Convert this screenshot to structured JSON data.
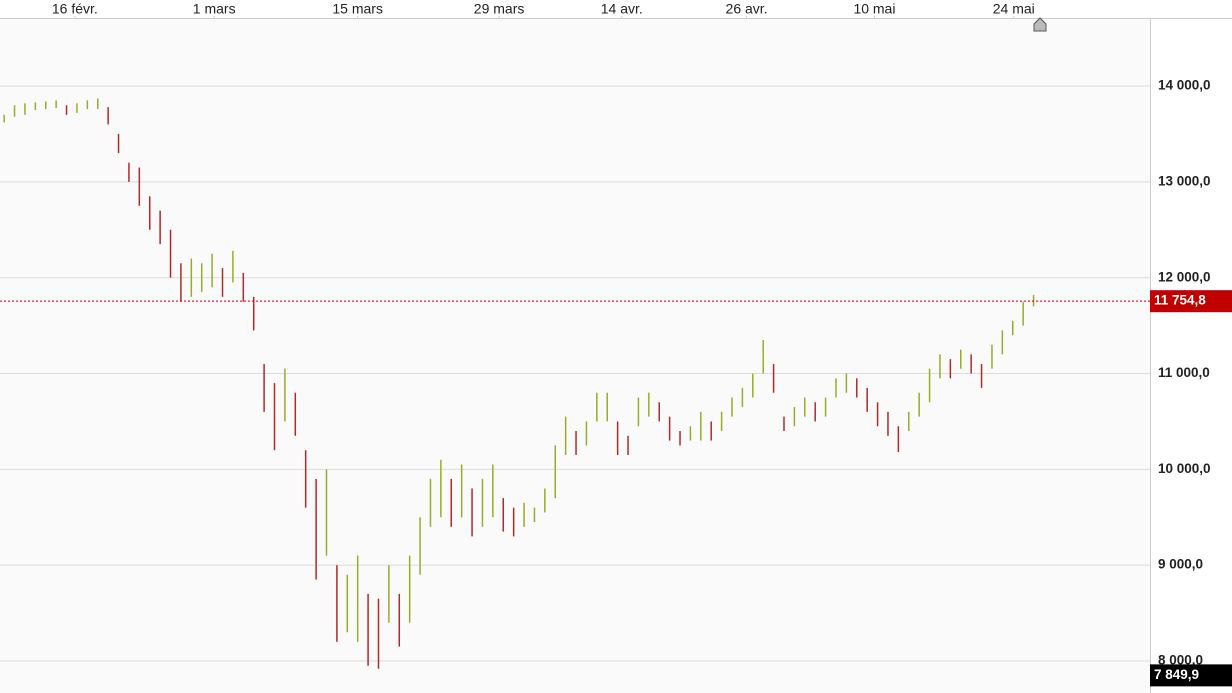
{
  "chart_data": {
    "type": "hilo",
    "xlim": [
      -0.4,
      110.2
    ],
    "xticks": [
      {
        "value": 6.8,
        "label": "16 févr."
      },
      {
        "value": 20.2,
        "label": "1 mars"
      },
      {
        "value": 34.0,
        "label": "15 mars"
      },
      {
        "value": 47.6,
        "label": "29 mars"
      },
      {
        "value": 59.4,
        "label": "14 avr."
      },
      {
        "value": 71.4,
        "label": "26 avr."
      },
      {
        "value": 83.7,
        "label": "10 mai"
      },
      {
        "value": 97.1,
        "label": "24 mai"
      }
    ],
    "ylim": [
      7666,
      14710
    ],
    "yticks": [
      {
        "value": 8000,
        "label": "8 000,0"
      },
      {
        "value": 9000,
        "label": "9 000,0"
      },
      {
        "value": 10000,
        "label": "10 000,0"
      },
      {
        "value": 11000,
        "label": "11 000,0"
      },
      {
        "value": 12000,
        "label": "12 000,0"
      },
      {
        "value": 13000,
        "label": "13 000,0"
      },
      {
        "value": 14000,
        "label": "14 000,0"
      }
    ],
    "grid": true,
    "up_color": "#9aab2a",
    "down_color": "#b02a2a",
    "high": [
      13700,
      13800,
      13820,
      13830,
      13840,
      13850,
      13800,
      13820,
      13850,
      13870,
      13780,
      13500,
      13200,
      13150,
      12850,
      12700,
      12500,
      12150,
      12200,
      12150,
      12250,
      12100,
      12280,
      12050,
      11800,
      11100,
      10900,
      11050,
      10800,
      10200,
      9900,
      10000,
      9000,
      8900,
      9100,
      8700,
      8650,
      9000,
      8700,
      9100,
      9500,
      9900,
      10100,
      9900,
      10050,
      9800,
      9900,
      10050,
      9700,
      9600,
      9650,
      9600,
      9800,
      10250,
      10550,
      10400,
      10500,
      10800,
      10800,
      10500,
      10350,
      10750,
      10800,
      10700,
      10550,
      10400,
      10450,
      10600,
      10500,
      10600,
      10750,
      10850,
      11000,
      11350,
      11100,
      10550,
      10650,
      10750,
      10700,
      10750,
      10950,
      11000,
      10950,
      10850,
      10700,
      10600,
      10450,
      10600,
      10800,
      11050,
      11200,
      11150,
      11250,
      11200,
      11100,
      11300,
      11450,
      11550,
      11750,
      11820
    ],
    "low": [
      13620,
      13680,
      13700,
      13750,
      13760,
      13770,
      13700,
      13720,
      13760,
      13760,
      13600,
      13300,
      13000,
      12750,
      12500,
      12350,
      12000,
      11750,
      11800,
      11850,
      11900,
      11800,
      11950,
      11750,
      11450,
      10600,
      10200,
      10500,
      10350,
      9600,
      8850,
      9100,
      8200,
      8300,
      8200,
      7950,
      7920,
      8400,
      8150,
      8400,
      8900,
      9400,
      9500,
      9400,
      9500,
      9300,
      9400,
      9500,
      9350,
      9300,
      9400,
      9450,
      9550,
      9700,
      10150,
      10150,
      10250,
      10500,
      10500,
      10150,
      10150,
      10450,
      10550,
      10500,
      10300,
      10250,
      10300,
      10300,
      10300,
      10400,
      10550,
      10650,
      10750,
      11000,
      10800,
      10400,
      10450,
      10550,
      10500,
      10550,
      10750,
      10800,
      10750,
      10600,
      10450,
      10350,
      10180,
      10400,
      10550,
      10700,
      10950,
      10950,
      11050,
      11000,
      10850,
      11050,
      11200,
      11400,
      11500,
      11700
    ],
    "last_price": {
      "value": 11754.8,
      "label": "11 754,8",
      "color": "#c00000"
    },
    "low_price": {
      "value": 7849.9,
      "label": "7 849,9",
      "color": "#000000"
    }
  }
}
